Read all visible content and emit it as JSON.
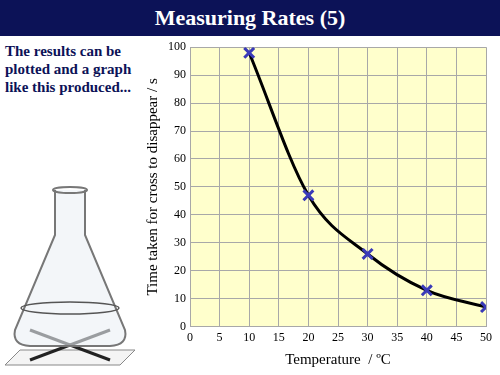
{
  "slide": {
    "title": "Measuring Rates (5)",
    "text": "The results can be plotted and a graph like this produced..."
  },
  "chart_data": {
    "type": "line",
    "x": [
      10,
      20,
      30,
      40,
      50
    ],
    "values": [
      98,
      47,
      26,
      13,
      7
    ],
    "color": "#3a3ab8",
    "marker": "x",
    "line_style": "solid",
    "x_label": "Temperature  / ºC",
    "y_label": "Time taken for cross to disappear / s",
    "xlim": [
      0,
      50
    ],
    "xticks": [
      0,
      5,
      10,
      15,
      20,
      25,
      30,
      35,
      40,
      45,
      50
    ],
    "ylim": [
      0,
      100
    ],
    "yticks": [
      0,
      10,
      20,
      30,
      40,
      50,
      60,
      70,
      80,
      90,
      100
    ],
    "grid": true
  }
}
